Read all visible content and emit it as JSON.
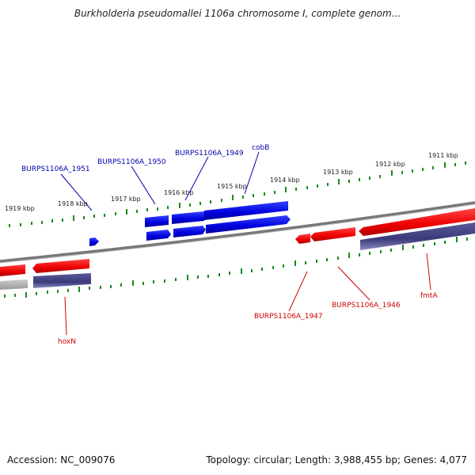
{
  "title": "Burkholderia pseudomallei 1106a chromosome I, complete genom...",
  "footer": {
    "accession": "Accession: NC_009076",
    "summary": "Topology: circular; Length: 3,988,455 bp; Genes: 4,077"
  },
  "ticks": [
    "1911 kbp",
    "1912 kbp",
    "1913 kbp",
    "1914 kbp",
    "1915 kbp",
    "1916 kbp",
    "1917 kbp",
    "1918 kbp",
    "1919 kbp"
  ],
  "genes": {
    "cobB": "cobB",
    "g1949": "BURPS1106A_1949",
    "g1950": "BURPS1106A_1950",
    "g1951": "BURPS1106A_1951",
    "fmtA": "fmtA",
    "g1946": "BURPS1106A_1946",
    "g1947": "BURPS1106A_1947",
    "hoxN": "hoxN"
  },
  "colors": {
    "forward_gene": "#0000ee",
    "reverse_gene": "#ee0000",
    "cds_reverse": "#44448a",
    "backbone": "#888888",
    "tick": "#1a8a1a"
  }
}
